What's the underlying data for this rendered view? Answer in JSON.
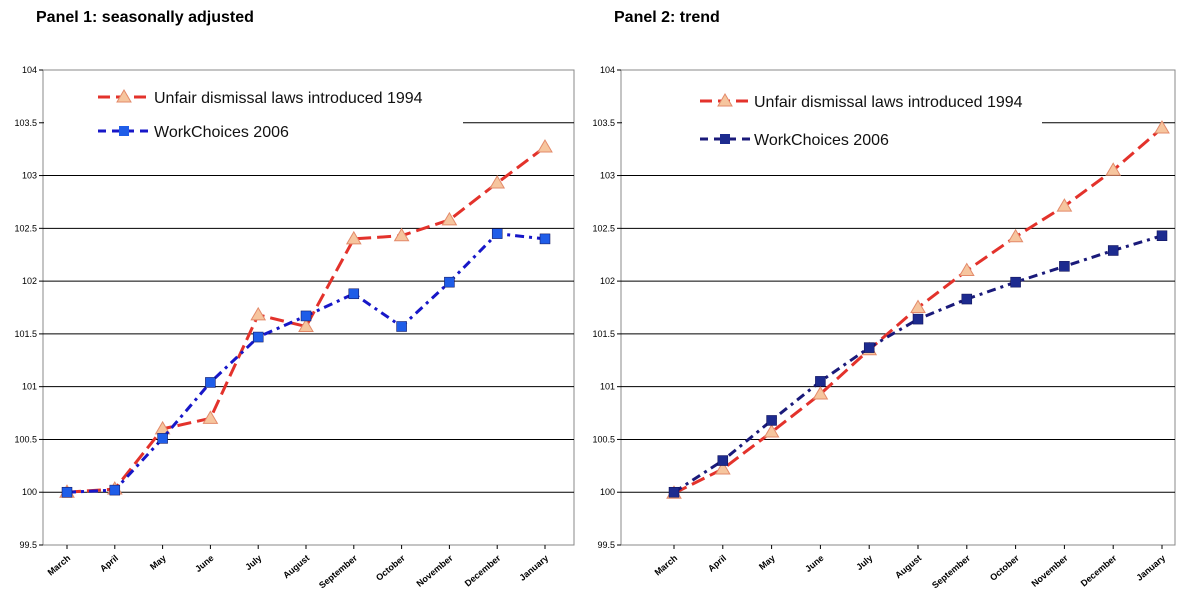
{
  "panels": [
    {
      "title": "Panel 1: seasonally adjusted"
    },
    {
      "title": "Panel 2: trend"
    }
  ],
  "colors": {
    "series1": "#e3322b",
    "series1_marker_fill": "#f6c59e",
    "series1_marker_stroke": "#e38a6a",
    "series2_panel1": "#1717c8",
    "series2_panel1_marker": "#1f5de8",
    "series2_panel2": "#1a1a7a",
    "series2_panel2_marker": "#1d2b8f"
  },
  "chart_data": [
    {
      "type": "line",
      "title": "Panel 1: seasonally adjusted",
      "categories": [
        "March",
        "April",
        "May",
        "June",
        "July",
        "August",
        "September",
        "October",
        "November",
        "December",
        "January"
      ],
      "ylim": [
        99.5,
        104
      ],
      "yticks": [
        99.5,
        100,
        100.5,
        101,
        101.5,
        102,
        102.5,
        103,
        103.5,
        104
      ],
      "ytick_labels": [
        "99.5",
        "100",
        "100.5",
        "101",
        "101.5",
        "102",
        "102.5",
        "103",
        "103.5",
        "104"
      ],
      "grid": "horizontal",
      "legend_placement": "top-left",
      "series": [
        {
          "name": "Unfair dismissal laws introduced 1994",
          "marker": "triangle",
          "values": [
            100.0,
            100.03,
            100.6,
            100.7,
            101.68,
            101.57,
            102.4,
            102.43,
            102.58,
            102.93,
            103.27
          ]
        },
        {
          "name": "WorkChoices 2006",
          "marker": "square",
          "values": [
            100.0,
            100.02,
            100.51,
            101.04,
            101.47,
            101.67,
            101.88,
            101.57,
            101.99,
            102.45,
            102.4
          ]
        }
      ]
    },
    {
      "type": "line",
      "title": "Panel 2: trend",
      "categories": [
        "March",
        "April",
        "May",
        "June",
        "July",
        "August",
        "September",
        "October",
        "November",
        "December",
        "January"
      ],
      "ylim": [
        99.5,
        104
      ],
      "yticks": [
        99.5,
        100,
        100.5,
        101,
        101.5,
        102,
        102.5,
        103,
        103.5,
        104
      ],
      "ytick_labels": [
        "99.5",
        "100",
        "100.5",
        "101",
        "101.5",
        "102",
        "102.5",
        "103",
        "103.5",
        "104"
      ],
      "grid": "horizontal",
      "legend_placement": "top-left",
      "series": [
        {
          "name": "Unfair dismissal laws introduced 1994",
          "marker": "triangle",
          "values": [
            99.99,
            100.22,
            100.57,
            100.93,
            101.35,
            101.75,
            102.1,
            102.42,
            102.71,
            103.05,
            103.45
          ]
        },
        {
          "name": "WorkChoices 2006",
          "marker": "square",
          "values": [
            100.0,
            100.3,
            100.68,
            101.05,
            101.37,
            101.64,
            101.83,
            101.99,
            102.14,
            102.29,
            102.43
          ]
        }
      ]
    }
  ]
}
